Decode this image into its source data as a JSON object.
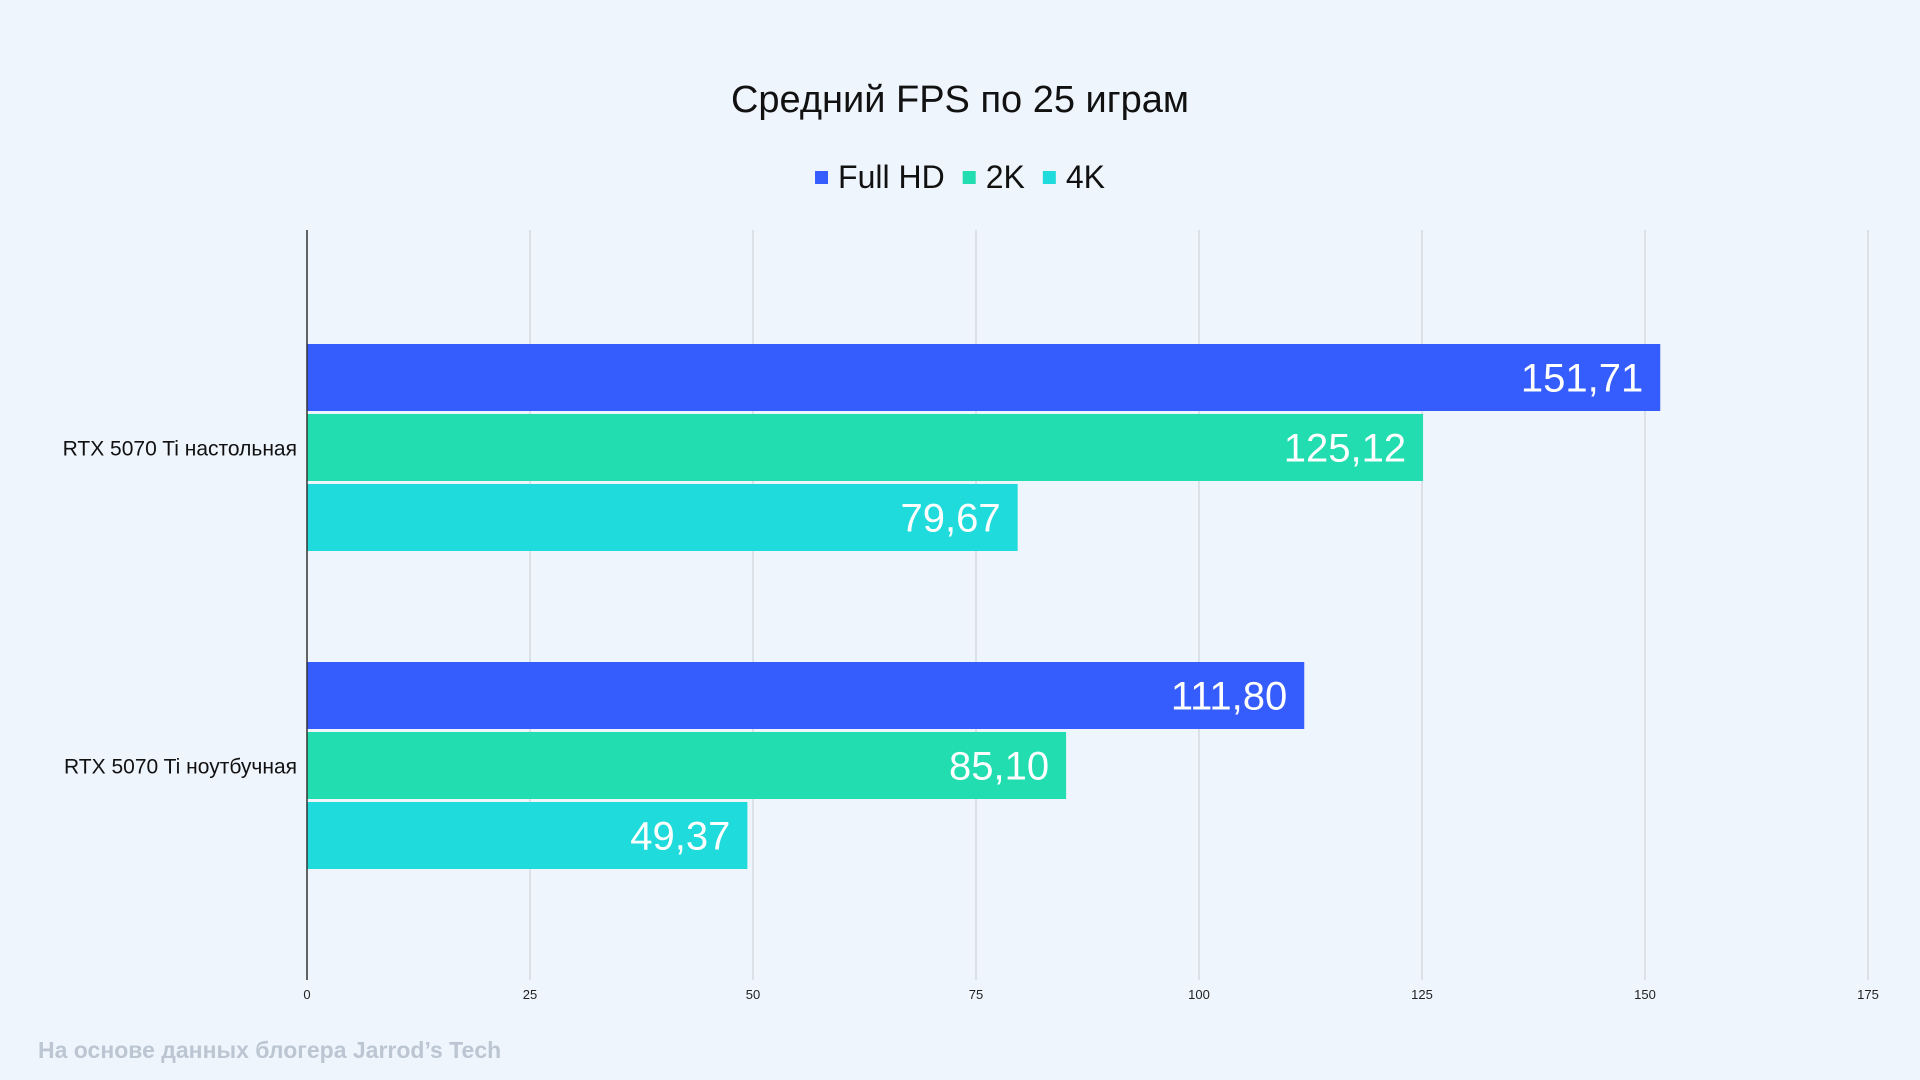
{
  "chart_data": {
    "type": "bar",
    "orientation": "horizontal",
    "title": "Средний FPS по 25 играм",
    "categories": [
      "RTX 5070 Ti настольная",
      "RTX 5070 Ti ноутбучная"
    ],
    "series": [
      {
        "name": "Full HD",
        "color": "#355cfc",
        "values": [
          151.71,
          111.8
        ],
        "labels": [
          "151,71",
          "111,80"
        ]
      },
      {
        "name": "2K",
        "color": "#21ddb0",
        "values": [
          125.12,
          85.1
        ],
        "labels": [
          "125,12",
          "85,10"
        ]
      },
      {
        "name": "4K",
        "color": "#20dbdb",
        "values": [
          79.67,
          49.37
        ],
        "labels": [
          "79,67",
          "49,37"
        ]
      }
    ],
    "xlim": [
      0,
      175
    ],
    "xticks": [
      0,
      25,
      50,
      75,
      100,
      125,
      150,
      175
    ],
    "grid": true,
    "legend_position": "top-center"
  },
  "footnote": "На основе данных блогера Jarrod’s Tech"
}
